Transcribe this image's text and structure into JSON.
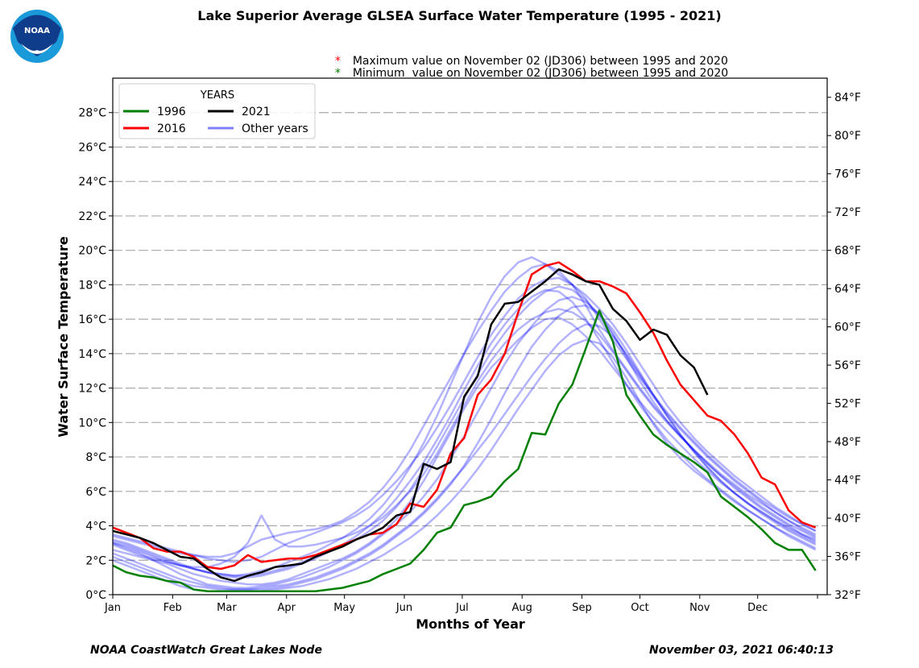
{
  "header": {
    "title": "Lake Superior Average GLSEA Surface Water Temperature (1995 - 2021)",
    "logo_text": "NOAA",
    "notes": [
      {
        "symbol": "*",
        "color": "#ff0000",
        "text": "Maximum value on November 02 (JD306) between 1995 and 2020"
      },
      {
        "symbol": "*",
        "color": "#008000",
        "text": "Minimum  value on November 02 (JD306) between 1995 and 2020"
      }
    ]
  },
  "footer": {
    "left": "NOAA CoastWatch Great Lakes Node",
    "right": "November 03, 2021 06:40:13"
  },
  "chart_data": {
    "type": "line",
    "title": "Lake Superior Average GLSEA Surface Water Temperature (1995 - 2021)",
    "xlabel": "Months of Year",
    "ylabel": "Water Surface Temperature",
    "x_unit": "day of year (sampled weekly from Jan 01)",
    "x_step_days": 7,
    "xlim_days": [
      0,
      370
    ],
    "x_ticks": [
      {
        "label": "Jan",
        "day": 0
      },
      {
        "label": "Feb",
        "day": 31
      },
      {
        "label": "Mar",
        "day": 59
      },
      {
        "label": "Apr",
        "day": 90
      },
      {
        "label": "May",
        "day": 120
      },
      {
        "label": "Jun",
        "day": 151
      },
      {
        "label": "Jul",
        "day": 181
      },
      {
        "label": "Aug",
        "day": 212
      },
      {
        "label": "Sep",
        "day": 243
      },
      {
        "label": "Oct",
        "day": 273
      },
      {
        "label": "Nov",
        "day": 304
      },
      {
        "label": "Dec",
        "day": 334
      },
      {
        "label": "",
        "day": 365
      }
    ],
    "ylim_c": [
      0,
      30
    ],
    "y_ticks_c": [
      0,
      2,
      4,
      6,
      8,
      10,
      12,
      14,
      16,
      18,
      20,
      22,
      24,
      26,
      28
    ],
    "y_tick_suffix_c": "°C",
    "y_ticks_f": [
      32,
      36,
      40,
      44,
      48,
      52,
      56,
      60,
      64,
      68,
      72,
      76,
      80,
      84
    ],
    "y_tick_suffix_f": "°F",
    "grid": "horizontal dashed",
    "legend": {
      "title": "YEARS",
      "placement": "top-left",
      "entries": [
        {
          "label": "1996",
          "color": "#008000"
        },
        {
          "label": "2021",
          "color": "#000000"
        },
        {
          "label": "2016",
          "color": "#ff0000"
        },
        {
          "label": "Other years",
          "color": "#8080ff"
        }
      ]
    },
    "series": [
      {
        "name": "1996",
        "color": "#008000",
        "values": [
          1.7,
          1.3,
          1.1,
          1.0,
          0.8,
          0.7,
          0.3,
          0.2,
          0.2,
          0.2,
          0.2,
          0.2,
          0.2,
          0.2,
          0.2,
          0.2,
          0.3,
          0.4,
          0.6,
          0.8,
          1.2,
          1.5,
          1.8,
          2.6,
          3.6,
          3.9,
          5.2,
          5.4,
          5.7,
          6.6,
          7.3,
          9.4,
          9.3,
          11.1,
          12.2,
          14.3,
          16.5,
          14.7,
          11.6,
          10.4,
          9.3,
          8.7,
          8.2,
          7.7,
          7.1,
          5.7,
          5.1,
          4.5,
          3.8,
          3.0,
          2.6,
          2.6,
          1.4
        ]
      },
      {
        "name": "2016",
        "color": "#ff0000",
        "values": [
          3.9,
          3.6,
          3.3,
          2.7,
          2.5,
          2.5,
          2.2,
          1.6,
          1.5,
          1.7,
          2.3,
          1.9,
          2.0,
          2.1,
          2.1,
          2.3,
          2.6,
          2.9,
          3.2,
          3.5,
          3.6,
          4.1,
          5.3,
          5.1,
          6.1,
          8.2,
          9.1,
          11.6,
          12.5,
          14.0,
          16.4,
          18.6,
          19.1,
          19.3,
          18.8,
          18.2,
          18.2,
          17.9,
          17.5,
          16.4,
          15.2,
          13.6,
          12.2,
          11.3,
          10.4,
          10.1,
          9.3,
          8.2,
          6.8,
          6.4,
          4.9,
          4.2,
          3.9
        ]
      },
      {
        "name": "2021",
        "color": "#000000",
        "values": [
          3.7,
          3.5,
          3.3,
          3.0,
          2.6,
          2.2,
          2.1,
          1.5,
          1.0,
          0.8,
          1.1,
          1.3,
          1.6,
          1.7,
          1.8,
          2.2,
          2.5,
          2.8,
          3.2,
          3.5,
          3.9,
          4.6,
          4.8,
          7.6,
          7.3,
          7.7,
          11.5,
          12.7,
          15.7,
          16.9,
          17.0,
          17.6,
          18.2,
          18.9,
          18.6,
          18.2,
          18.0,
          16.6,
          15.9,
          14.8,
          15.4,
          15.1,
          13.9,
          13.2,
          11.6
        ]
      }
    ],
    "other_years": {
      "label": "Other years",
      "color": "#0000ff",
      "opacity": 0.3,
      "series": [
        [
          3.2,
          3.0,
          2.7,
          2.4,
          2.1,
          1.8,
          1.5,
          1.3,
          1.2,
          1.1,
          1.2,
          1.4,
          1.6,
          1.9,
          2.2,
          2.5,
          2.9,
          3.3,
          3.8,
          4.4,
          5.2,
          6.2,
          7.4,
          8.8,
          10.4,
          12.2,
          14.0,
          15.8,
          17.3,
          18.5,
          19.3,
          19.6,
          19.2,
          18.6,
          18.0,
          17.4,
          16.6,
          15.7,
          14.6,
          13.4,
          12.2,
          11.0,
          10.0,
          9.1,
          8.3,
          7.6,
          6.9,
          6.3,
          5.7,
          5.1,
          4.6,
          4.1,
          3.7
        ],
        [
          2.0,
          1.7,
          1.4,
          1.1,
          0.8,
          0.5,
          0.3,
          0.2,
          0.2,
          0.2,
          0.2,
          0.2,
          0.3,
          0.4,
          0.5,
          0.7,
          0.9,
          1.2,
          1.5,
          1.9,
          2.3,
          2.8,
          3.3,
          3.9,
          4.6,
          5.4,
          6.3,
          7.3,
          8.4,
          9.6,
          10.8,
          11.9,
          13.0,
          13.9,
          14.5,
          14.8,
          14.6,
          13.8,
          12.6,
          11.2,
          9.9,
          8.8,
          7.9,
          7.2,
          6.6,
          6.0,
          5.4,
          4.9,
          4.4,
          3.9,
          3.4,
          3.0,
          2.6
        ],
        [
          3.5,
          3.3,
          3.1,
          2.9,
          2.7,
          2.5,
          2.3,
          2.1,
          2.0,
          1.9,
          2.0,
          2.2,
          2.6,
          3.0,
          3.3,
          3.6,
          3.9,
          4.2,
          4.6,
          5.1,
          5.8,
          6.6,
          7.5,
          8.5,
          9.7,
          11.0,
          12.4,
          13.8,
          15.1,
          16.2,
          17.2,
          17.9,
          18.3,
          18.4,
          18.0,
          17.2,
          16.0,
          14.8,
          13.7,
          12.6,
          11.6,
          10.6,
          9.7,
          8.9,
          8.1,
          7.4,
          6.7,
          6.1,
          5.5,
          5.0,
          4.5,
          4.1,
          3.7
        ],
        [
          3.0,
          2.7,
          2.4,
          2.0,
          1.6,
          1.2,
          0.9,
          0.6,
          0.5,
          0.4,
          0.4,
          0.5,
          0.6,
          0.8,
          1.0,
          1.3,
          1.6,
          2.0,
          2.4,
          2.9,
          3.5,
          4.1,
          4.8,
          5.7,
          6.7,
          7.9,
          9.2,
          10.6,
          12.0,
          13.4,
          14.6,
          15.6,
          16.5,
          17.1,
          17.3,
          17.0,
          16.3,
          15.2,
          13.8,
          12.4,
          11.2,
          10.1,
          9.2,
          8.4,
          7.6,
          6.9,
          6.2,
          5.6,
          5.0,
          4.5,
          4.0,
          3.5,
          3.1
        ],
        [
          2.6,
          2.4,
          2.2,
          2.0,
          1.8,
          1.5,
          1.2,
          1.0,
          0.8,
          0.7,
          0.6,
          0.6,
          0.7,
          0.9,
          1.2,
          1.5,
          1.8,
          2.1,
          2.5,
          3.0,
          3.6,
          4.4,
          5.4,
          6.6,
          8.0,
          9.4,
          10.8,
          12.1,
          13.2,
          14.0,
          14.8,
          15.5,
          16.0,
          16.1,
          15.7,
          15.0,
          14.2,
          13.2,
          12.2,
          11.2,
          10.3,
          9.5,
          8.7,
          7.9,
          7.2,
          6.5,
          5.9,
          5.3,
          4.8,
          4.3,
          3.9,
          3.5,
          3.2
        ],
        [
          3.4,
          3.2,
          3.0,
          2.8,
          2.6,
          2.4,
          2.3,
          2.2,
          2.2,
          2.4,
          2.8,
          3.2,
          3.4,
          3.6,
          3.7,
          3.8,
          4.0,
          4.3,
          4.8,
          5.4,
          6.2,
          7.2,
          8.4,
          9.8,
          11.2,
          12.6,
          14.0,
          15.3,
          16.5,
          17.6,
          18.4,
          19.0,
          19.2,
          18.8,
          18.0,
          16.8,
          15.4,
          14.2,
          13.1,
          12.0,
          11.0,
          10.1,
          9.2,
          8.4,
          7.6,
          6.9,
          6.3,
          5.7,
          5.1,
          4.6,
          4.1,
          3.7,
          3.3
        ],
        [
          2.4,
          2.1,
          1.8,
          1.5,
          1.2,
          0.9,
          0.7,
          0.5,
          0.4,
          0.3,
          0.3,
          0.3,
          0.4,
          0.5,
          0.7,
          0.9,
          1.2,
          1.5,
          1.9,
          2.3,
          2.8,
          3.4,
          4.0,
          4.7,
          5.5,
          6.4,
          7.5,
          8.8,
          10.2,
          11.7,
          13.1,
          14.4,
          15.4,
          16.2,
          16.7,
          16.8,
          16.3,
          15.4,
          14.2,
          12.9,
          11.6,
          10.4,
          9.3,
          8.3,
          7.4,
          6.6,
          5.9,
          5.3,
          4.7,
          4.2,
          3.7,
          3.3,
          2.9
        ],
        [
          3.1,
          2.9,
          2.6,
          2.3,
          2.0,
          1.7,
          1.5,
          1.3,
          1.2,
          1.1,
          1.1,
          1.2,
          1.4,
          1.6,
          1.9,
          2.2,
          2.5,
          2.8,
          3.2,
          3.7,
          4.3,
          5.1,
          6.1,
          7.3,
          8.6,
          10.0,
          11.4,
          12.8,
          14.1,
          15.2,
          16.2,
          17.0,
          17.6,
          17.9,
          17.7,
          17.1,
          16.2,
          15.1,
          13.9,
          12.7,
          11.5,
          10.5,
          9.6,
          8.8,
          8.0,
          7.3,
          6.6,
          6.0,
          5.4,
          4.8,
          4.3,
          3.8,
          3.4
        ],
        [
          2.2,
          1.9,
          1.6,
          1.3,
          1.0,
          0.7,
          0.5,
          0.4,
          0.3,
          0.3,
          0.3,
          0.4,
          0.5,
          0.6,
          0.8,
          1.0,
          1.3,
          1.6,
          2.0,
          2.4,
          2.9,
          3.5,
          4.1,
          4.8,
          5.6,
          6.5,
          7.4,
          8.4,
          9.4,
          10.5,
          11.6,
          12.7,
          13.7,
          14.6,
          15.3,
          15.7,
          15.6,
          15.0,
          14.0,
          12.8,
          11.6,
          10.4,
          9.3,
          8.3,
          7.4,
          6.6,
          5.9,
          5.3,
          4.8,
          4.3,
          3.8,
          3.4,
          3.0
        ],
        [
          2.9,
          2.6,
          2.3,
          2.1,
          1.9,
          1.7,
          1.5,
          1.3,
          1.1,
          1.0,
          1.0,
          1.1,
          1.3,
          1.5,
          1.8,
          2.1,
          2.5,
          2.9,
          3.4,
          4.0,
          4.7,
          5.6,
          6.6,
          7.7,
          9.0,
          10.4,
          11.9,
          13.3,
          14.6,
          15.7,
          16.6,
          17.3,
          17.7,
          17.6,
          17.0,
          16.0,
          14.8,
          13.5,
          12.2,
          11.0,
          10.0,
          9.0,
          8.2,
          7.4,
          6.7,
          6.1,
          5.5,
          4.9,
          4.4,
          3.9,
          3.5,
          3.1,
          2.7
        ],
        [
          3.0,
          2.8,
          2.5,
          2.2,
          1.9,
          1.7,
          1.6,
          1.6,
          1.8,
          2.2,
          3.0,
          4.6,
          3.2,
          2.8,
          2.8,
          2.9,
          3.1,
          3.3,
          3.6,
          4.0,
          4.5,
          5.2,
          6.0,
          7.0,
          8.2,
          9.6,
          11.0,
          12.4,
          13.6,
          14.6,
          15.4,
          16.0,
          16.4,
          16.6,
          16.4,
          15.9,
          15.1,
          14.1,
          13.0,
          11.9,
          10.9,
          10.0,
          9.2,
          8.4,
          7.7,
          7.0,
          6.4,
          5.8,
          5.3,
          4.8,
          4.3,
          3.9,
          3.5
        ]
      ]
    }
  }
}
